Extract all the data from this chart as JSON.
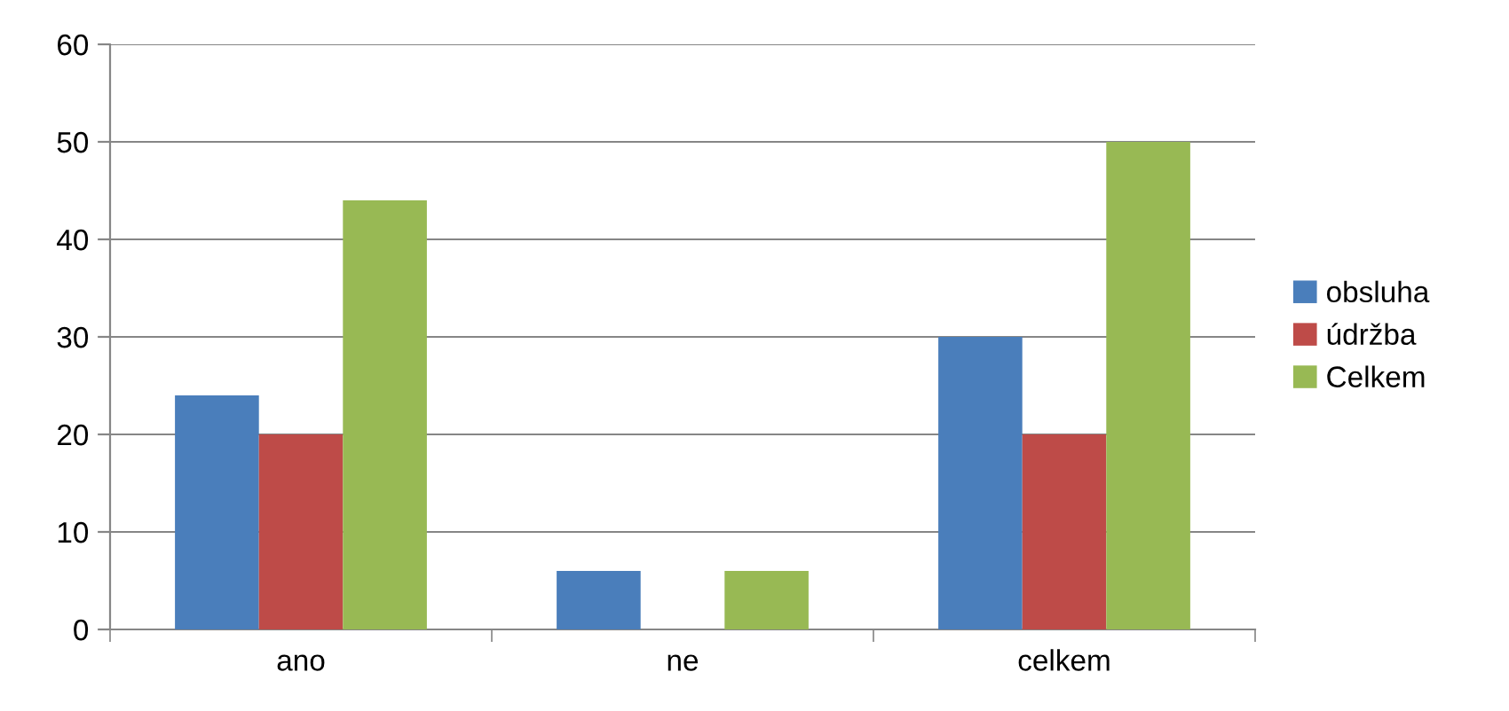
{
  "chart_data": {
    "type": "bar",
    "categories": [
      "ano",
      "ne",
      "celkem"
    ],
    "series": [
      {
        "name": "obsluha",
        "color": "#4a7ebb",
        "values": [
          24,
          6,
          30
        ]
      },
      {
        "name": "údržba",
        "color": "#be4b48",
        "values": [
          20,
          0,
          20
        ]
      },
      {
        "name": "Celkem",
        "color": "#98b954",
        "values": [
          44,
          6,
          50
        ]
      }
    ],
    "ylim": [
      0,
      60
    ],
    "yticks": [
      0,
      10,
      20,
      30,
      40,
      50,
      60
    ],
    "grid": "y",
    "legend": "right"
  }
}
